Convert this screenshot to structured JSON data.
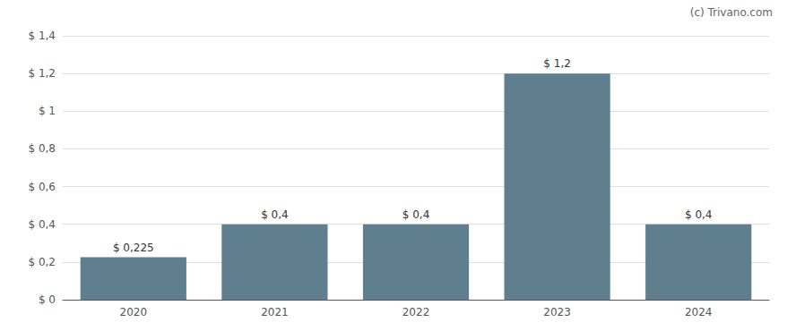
{
  "chart_data": {
    "type": "bar",
    "categories": [
      "2020",
      "2021",
      "2022",
      "2023",
      "2024"
    ],
    "values": [
      0.225,
      0.4,
      0.4,
      1.2,
      0.4
    ],
    "value_labels": [
      "$ 0,225",
      "$ 0,4",
      "$ 0,4",
      "$ 1,2",
      "$ 0,4"
    ],
    "data_labels": true,
    "color": "#5f7f8f",
    "ylim": [
      0,
      1.4
    ],
    "yticks": [
      {
        "value": 0,
        "label": "$ 0"
      },
      {
        "value": 0.2,
        "label": "$ 0,2"
      },
      {
        "value": 0.4,
        "label": "$ 0,4"
      },
      {
        "value": 0.6,
        "label": "$ 0,6"
      },
      {
        "value": 0.8,
        "label": "$ 0,8"
      },
      {
        "value": 1.0,
        "label": "$ 1"
      },
      {
        "value": 1.2,
        "label": "$ 1,2"
      },
      {
        "value": 1.4,
        "label": "$ 1,4"
      }
    ],
    "grid": true,
    "annotations": [
      "(c) Trivano.com"
    ]
  }
}
